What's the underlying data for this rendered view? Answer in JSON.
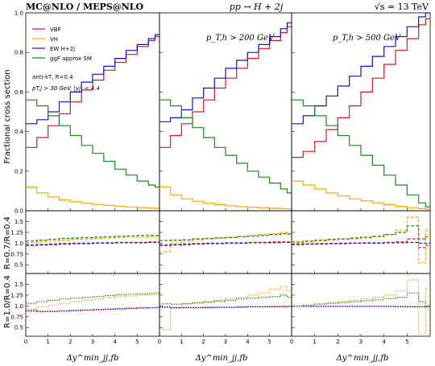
{
  "header": {
    "left": "MC@NLO / MEPS@NLO",
    "center": "pp → H + 2j",
    "right": "√s = 13 TeV"
  },
  "panels": {
    "col2_label": "p_T,h > 200 GeV",
    "col3_label": "p_T,h > 500 GeV"
  },
  "legend": {
    "items": [
      {
        "name": "VBF",
        "color": "#e8121e"
      },
      {
        "name": "VH",
        "color": "#ffa500"
      },
      {
        "name": "EW H+2j",
        "color": "#1010e0"
      },
      {
        "name": "ggF approx SM",
        "color": "#1a8a1a"
      }
    ],
    "note1": "anti-kT, R=0.4",
    "note2": "pT,j > 30 GeV, |yj| < 4.4"
  },
  "axes": {
    "main_ylabel": "Fractional cross section",
    "ratio1_ylabel": "R=0.7/R=0.4",
    "ratio2_ylabel": "R=1.0/R=0.4",
    "xlabel": "Δy^min_jj,fb",
    "x_ticks": [
      "0",
      "1",
      "2",
      "3",
      "4",
      "5"
    ],
    "main_y_ticks": [
      "0.0",
      "0.2",
      "0.4",
      "0.6",
      "0.8",
      "1.0"
    ],
    "ratio_y_ticks": [
      "0.5",
      "0.75",
      "1.0",
      "1.25",
      "1.5"
    ]
  },
  "chart_data": {
    "type": "line",
    "x": [
      0.0,
      0.5,
      1.0,
      1.5,
      2.0,
      2.5,
      3.0,
      3.5,
      4.0,
      4.5,
      5.0,
      5.5,
      5.8
    ],
    "xlim": [
      0,
      6
    ],
    "main_ylim": [
      0,
      1.0
    ],
    "ratio_ylim": [
      0.3,
      1.75
    ],
    "panels": [
      {
        "name": "inclusive",
        "series": [
          {
            "name": "VBF",
            "values": [
              0.32,
              0.37,
              0.43,
              0.49,
              0.55,
              0.61,
              0.66,
              0.71,
              0.75,
              0.79,
              0.83,
              0.86,
              0.88
            ]
          },
          {
            "name": "VH",
            "values": [
              0.12,
              0.09,
              0.07,
              0.055,
              0.045,
              0.038,
              0.032,
              0.027,
              0.023,
              0.019,
              0.016,
              0.014,
              0.012
            ]
          },
          {
            "name": "EW H+2j",
            "values": [
              0.44,
              0.46,
              0.5,
              0.55,
              0.6,
              0.65,
              0.69,
              0.73,
              0.77,
              0.81,
              0.84,
              0.87,
              0.89
            ]
          },
          {
            "name": "ggF approx SM",
            "values": [
              0.56,
              0.53,
              0.48,
              0.43,
              0.38,
              0.33,
              0.29,
              0.25,
              0.21,
              0.18,
              0.15,
              0.13,
              0.12
            ]
          }
        ],
        "ratio_R07": [
          {
            "name": "VBF",
            "values": [
              0.96,
              0.97,
              0.98,
              0.99,
              1.0,
              1.0,
              1.01,
              1.01,
              1.02,
              1.02,
              1.02,
              1.03,
              1.03
            ]
          },
          {
            "name": "VH",
            "values": [
              1.01,
              1.03,
              1.05,
              1.07,
              1.09,
              1.1,
              1.11,
              1.12,
              1.13,
              1.14,
              1.14,
              1.15,
              1.15
            ]
          },
          {
            "name": "EW H+2j",
            "values": [
              0.95,
              0.96,
              0.97,
              0.98,
              0.99,
              0.99,
              1.0,
              1.0,
              1.01,
              1.01,
              1.01,
              1.02,
              1.02
            ]
          },
          {
            "name": "ggF approx SM",
            "values": [
              1.05,
              1.07,
              1.09,
              1.11,
              1.12,
              1.13,
              1.14,
              1.15,
              1.16,
              1.17,
              1.18,
              1.18,
              1.18
            ]
          }
        ],
        "ratio_R10": [
          {
            "name": "VBF",
            "values": [
              0.9,
              0.88,
              0.88,
              0.89,
              0.9,
              0.91,
              0.92,
              0.93,
              0.94,
              0.95,
              0.96,
              0.96,
              0.97
            ]
          },
          {
            "name": "VH",
            "values": [
              0.92,
              0.98,
              1.02,
              1.06,
              1.1,
              1.13,
              1.16,
              1.19,
              1.21,
              1.23,
              1.25,
              1.26,
              1.27
            ]
          },
          {
            "name": "EW H+2j",
            "values": [
              0.88,
              0.87,
              0.87,
              0.88,
              0.89,
              0.9,
              0.91,
              0.92,
              0.93,
              0.94,
              0.95,
              0.96,
              0.96
            ]
          },
          {
            "name": "ggF approx SM",
            "values": [
              1.06,
              1.1,
              1.13,
              1.16,
              1.18,
              1.2,
              1.22,
              1.24,
              1.26,
              1.27,
              1.28,
              1.29,
              1.3
            ]
          }
        ]
      },
      {
        "name": "pT,h > 200 GeV",
        "series": [
          {
            "name": "VBF",
            "values": [
              0.32,
              0.38,
              0.44,
              0.5,
              0.56,
              0.62,
              0.67,
              0.72,
              0.77,
              0.82,
              0.86,
              0.9,
              0.93
            ]
          },
          {
            "name": "VH",
            "values": [
              0.12,
              0.08,
              0.06,
              0.048,
              0.038,
              0.031,
              0.025,
              0.021,
              0.018,
              0.015,
              0.012,
              0.01,
              0.009
            ]
          },
          {
            "name": "EW H+2j",
            "values": [
              0.45,
              0.47,
              0.51,
              0.57,
              0.62,
              0.67,
              0.72,
              0.76,
              0.8,
              0.84,
              0.88,
              0.92,
              0.95
            ]
          },
          {
            "name": "ggF approx SM",
            "values": [
              0.56,
              0.53,
              0.47,
              0.42,
              0.37,
              0.32,
              0.28,
              0.24,
              0.2,
              0.17,
              0.14,
              0.11,
              0.09
            ]
          }
        ],
        "ratio_R07": [
          {
            "name": "VBF",
            "values": [
              0.96,
              0.97,
              0.98,
              0.99,
              1.0,
              1.0,
              1.01,
              1.01,
              1.02,
              1.02,
              1.03,
              1.03,
              1.03
            ]
          },
          {
            "name": "VH",
            "values": [
              0.8,
              1.0,
              1.05,
              1.08,
              1.1,
              1.12,
              1.14,
              1.16,
              1.18,
              1.2,
              1.22,
              1.25,
              1.22
            ]
          },
          {
            "name": "EW H+2j",
            "values": [
              0.95,
              0.96,
              0.97,
              0.98,
              0.99,
              0.99,
              1.0,
              1.0,
              1.01,
              1.01,
              1.01,
              1.02,
              1.02
            ]
          },
          {
            "name": "ggF approx SM",
            "values": [
              1.06,
              1.07,
              1.08,
              1.1,
              1.11,
              1.12,
              1.13,
              1.15,
              1.16,
              1.18,
              1.2,
              1.22,
              1.21
            ]
          }
        ],
        "ratio_R10": [
          {
            "name": "VBF",
            "values": [
              0.98,
              0.96,
              0.96,
              0.96,
              0.97,
              0.97,
              0.97,
              0.98,
              0.98,
              0.98,
              0.99,
              0.99,
              0.99
            ]
          },
          {
            "name": "VH",
            "values": [
              0.45,
              0.95,
              1.05,
              1.08,
              1.1,
              1.13,
              1.16,
              1.2,
              1.25,
              1.3,
              1.38,
              1.45,
              1.35
            ]
          },
          {
            "name": "EW H+2j",
            "values": [
              0.97,
              0.96,
              0.96,
              0.96,
              0.96,
              0.97,
              0.97,
              0.97,
              0.98,
              0.98,
              0.98,
              0.98,
              0.99
            ]
          },
          {
            "name": "ggF approx SM",
            "values": [
              1.05,
              1.04,
              1.05,
              1.07,
              1.09,
              1.11,
              1.13,
              1.16,
              1.18,
              1.2,
              1.22,
              1.25,
              1.2
            ]
          }
        ]
      },
      {
        "name": "pT,h > 500 GeV",
        "series": [
          {
            "name": "VBF",
            "values": [
              0.27,
              0.3,
              0.35,
              0.41,
              0.47,
              0.53,
              0.6,
              0.67,
              0.74,
              0.81,
              0.87,
              0.94,
              0.97
            ]
          },
          {
            "name": "VH",
            "values": [
              0.15,
              0.13,
              0.11,
              0.09,
              0.075,
              0.06,
              0.05,
              0.04,
              0.03,
              0.022,
              0.015,
              0.01,
              0.008
            ]
          },
          {
            "name": "EW H+2j",
            "values": [
              0.44,
              0.48,
              0.53,
              0.58,
              0.63,
              0.68,
              0.73,
              0.78,
              0.83,
              0.88,
              0.93,
              0.98,
              1.0
            ]
          },
          {
            "name": "ggF approx SM",
            "values": [
              0.56,
              0.53,
              0.48,
              0.43,
              0.38,
              0.33,
              0.28,
              0.23,
              0.18,
              0.13,
              0.08,
              0.04,
              0.02
            ]
          }
        ],
        "ratio_R07": [
          {
            "name": "VBF",
            "values": [
              0.98,
              0.98,
              0.99,
              0.99,
              1.0,
              1.0,
              1.01,
              1.01,
              1.02,
              1.03,
              1.1,
              0.9,
              0.95
            ]
          },
          {
            "name": "VH",
            "values": [
              1.0,
              1.03,
              1.05,
              1.07,
              1.09,
              1.1,
              1.12,
              1.15,
              1.2,
              1.3,
              1.6,
              0.55,
              1.3
            ]
          },
          {
            "name": "EW H+2j",
            "values": [
              0.97,
              0.98,
              0.98,
              0.99,
              0.99,
              1.0,
              1.0,
              1.0,
              1.01,
              1.01,
              1.02,
              1.0,
              1.0
            ]
          },
          {
            "name": "ggF approx SM",
            "values": [
              1.03,
              1.05,
              1.07,
              1.09,
              1.1,
              1.12,
              1.14,
              1.16,
              1.2,
              1.25,
              1.4,
              1.1,
              1.15
            ]
          }
        ],
        "ratio_R10": [
          {
            "name": "VBF",
            "values": [
              1.0,
              0.99,
              0.99,
              0.99,
              0.99,
              0.99,
              0.99,
              0.99,
              0.99,
              0.99,
              0.98,
              0.98,
              0.98
            ]
          },
          {
            "name": "VH",
            "values": [
              1.0,
              1.02,
              1.05,
              1.08,
              1.1,
              1.13,
              1.16,
              1.2,
              1.25,
              1.35,
              1.6,
              0.35,
              1.4
            ]
          },
          {
            "name": "EW H+2j",
            "values": [
              0.99,
              0.99,
              0.99,
              0.99,
              0.99,
              0.99,
              0.99,
              0.99,
              0.99,
              0.98,
              0.98,
              0.98,
              0.98
            ]
          },
          {
            "name": "ggF approx SM",
            "values": [
              1.0,
              1.02,
              1.04,
              1.06,
              1.08,
              1.1,
              1.12,
              1.14,
              1.17,
              1.2,
              1.3,
              1.1,
              1.0
            ]
          }
        ]
      }
    ],
    "grid": false,
    "legend_position": "top-left"
  }
}
